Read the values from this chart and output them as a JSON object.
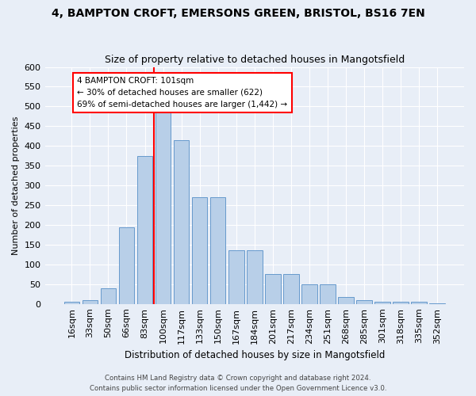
{
  "title_line1": "4, BAMPTON CROFT, EMERSONS GREEN, BRISTOL, BS16 7EN",
  "title_line2": "Size of property relative to detached houses in Mangotsfield",
  "xlabel": "Distribution of detached houses by size in Mangotsfield",
  "ylabel": "Number of detached properties",
  "bar_color": "#b8cfe8",
  "bar_edge_color": "#6699cc",
  "bar_categories": [
    "16sqm",
    "33sqm",
    "50sqm",
    "66sqm",
    "83sqm",
    "100sqm",
    "117sqm",
    "133sqm",
    "150sqm",
    "167sqm",
    "184sqm",
    "201sqm",
    "217sqm",
    "234sqm",
    "251sqm",
    "268sqm",
    "285sqm",
    "301sqm",
    "318sqm",
    "335sqm",
    "352sqm"
  ],
  "bar_values": [
    5,
    10,
    40,
    195,
    375,
    490,
    415,
    270,
    270,
    135,
    135,
    75,
    75,
    50,
    50,
    17,
    10,
    5,
    5,
    5,
    2
  ],
  "annotation_text": "4 BAMPTON CROFT: 101sqm\n← 30% of detached houses are smaller (622)\n69% of semi-detached houses are larger (1,442) →",
  "annotation_box_color": "white",
  "annotation_box_edge_color": "red",
  "vline_color": "red",
  "vline_x_index": 5,
  "ylim": [
    0,
    600
  ],
  "yticks": [
    0,
    50,
    100,
    150,
    200,
    250,
    300,
    350,
    400,
    450,
    500,
    550,
    600
  ],
  "footer_line1": "Contains HM Land Registry data © Crown copyright and database right 2024.",
  "footer_line2": "Contains public sector information licensed under the Open Government Licence v3.0.",
  "background_color": "#e8eef7",
  "grid_color": "white",
  "title_fontsize": 10,
  "subtitle_fontsize": 9,
  "bar_width": 0.85
}
